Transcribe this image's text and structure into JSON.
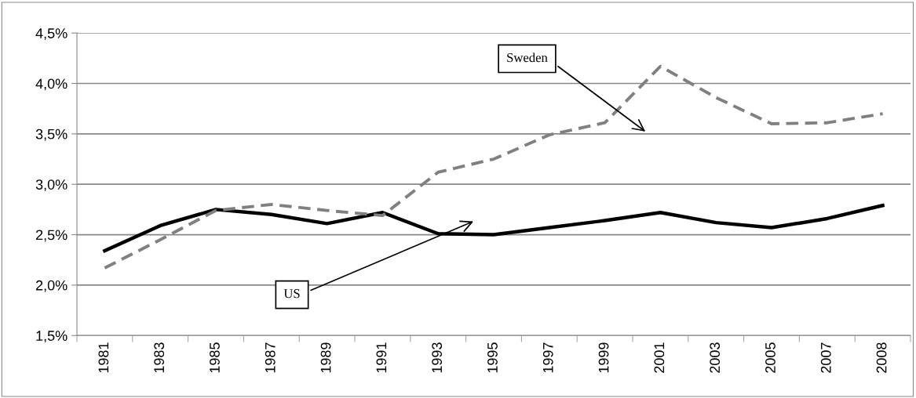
{
  "chart_data": {
    "type": "line",
    "categories": [
      "1981",
      "1983",
      "1985",
      "1987",
      "1989",
      "1991",
      "1993",
      "1995",
      "1997",
      "1999",
      "2001",
      "2003",
      "2005",
      "2007",
      "2008"
    ],
    "series": [
      {
        "color": "#000000",
        "line_style": "solid",
        "values": [
          2.34,
          2.59,
          2.75,
          2.7,
          2.61,
          2.72,
          2.51,
          2.5,
          2.57,
          2.64,
          2.72,
          2.62,
          2.57,
          2.66,
          2.79
        ]
      },
      {
        "color": "#808080",
        "line_style": "dashed",
        "values": [
          2.17,
          2.45,
          2.74,
          2.8,
          2.74,
          2.69,
          3.12,
          3.25,
          3.49,
          3.61,
          4.17,
          3.86,
          3.6,
          3.61,
          3.7
        ]
      }
    ],
    "ylim": [
      1.5,
      4.5
    ],
    "yticks": [
      {
        "value": 1.5,
        "label": "1,5%"
      },
      {
        "value": 2.0,
        "label": "2,0%"
      },
      {
        "value": 2.5,
        "label": "2,5%"
      },
      {
        "value": 3.0,
        "label": "3,0%"
      },
      {
        "value": 3.5,
        "label": "3,5%"
      },
      {
        "value": 4.0,
        "label": "4,0%"
      },
      {
        "value": 4.5,
        "label": "4,5%"
      }
    ],
    "grid": "y",
    "legend": false,
    "marker": "none",
    "annotations": [
      "Sweden",
      "US"
    ]
  }
}
